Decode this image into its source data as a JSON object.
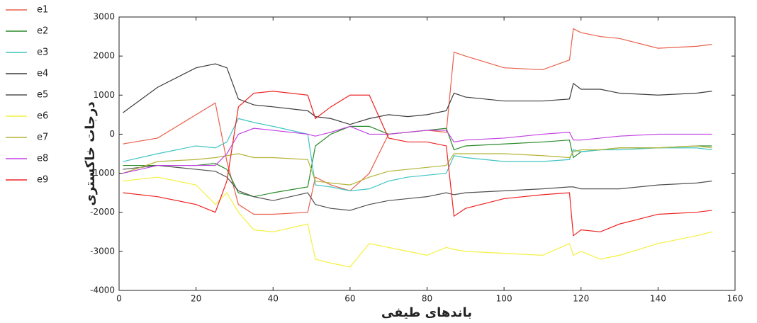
{
  "chart_data": {
    "type": "line",
    "xlabel": "باندهای طیفی",
    "ylabel": "درجات خاکستری",
    "xlim": [
      0,
      160
    ],
    "ylim": [
      -4000,
      3000
    ],
    "xticks": [
      0,
      20,
      40,
      60,
      80,
      100,
      120,
      140,
      160
    ],
    "yticks": [
      -4000,
      -3000,
      -2000,
      -1000,
      0,
      1000,
      2000,
      3000
    ],
    "legend": "left",
    "x": [
      1,
      10,
      20,
      25,
      28,
      31,
      35,
      40,
      49,
      51,
      55,
      60,
      65,
      70,
      75,
      80,
      85,
      87,
      90,
      100,
      110,
      117,
      118,
      120,
      125,
      130,
      140,
      150,
      154
    ],
    "series": [
      {
        "name": "e1",
        "color": "#e8604c",
        "values": [
          -250,
          -100,
          500,
          800,
          -700,
          -1800,
          -2050,
          -2050,
          -2000,
          -1100,
          -1300,
          -1450,
          -1000,
          0,
          50,
          100,
          50,
          2100,
          2000,
          1700,
          1650,
          1900,
          2700,
          2600,
          2500,
          2450,
          2200,
          2250,
          2300
        ]
      },
      {
        "name": "e2",
        "color": "#2a8a2a",
        "values": [
          -800,
          -800,
          -800,
          -750,
          -900,
          -1500,
          -1600,
          -1500,
          -1350,
          -300,
          0,
          200,
          200,
          0,
          50,
          100,
          150,
          -400,
          -300,
          -250,
          -200,
          -150,
          -600,
          -450,
          -400,
          -350,
          -350,
          -300,
          -300
        ]
      },
      {
        "name": "e3",
        "color": "#40c4c4",
        "values": [
          -700,
          -500,
          -300,
          -350,
          -200,
          400,
          300,
          200,
          0,
          -1300,
          -1350,
          -1450,
          -1400,
          -1200,
          -1100,
          -1050,
          -1000,
          -550,
          -600,
          -700,
          -700,
          -650,
          -400,
          -450,
          -400,
          -400,
          -350,
          -350,
          -400
        ]
      },
      {
        "name": "e4",
        "color": "#3c3c3c",
        "values": [
          550,
          1200,
          1700,
          1800,
          1700,
          900,
          750,
          700,
          600,
          450,
          400,
          250,
          400,
          500,
          450,
          500,
          600,
          1050,
          950,
          850,
          850,
          900,
          1300,
          1150,
          1150,
          1050,
          1000,
          1050,
          1100
        ]
      },
      {
        "name": "e5",
        "color": "#505050",
        "values": [
          -900,
          -800,
          -900,
          -950,
          -1100,
          -1450,
          -1600,
          -1700,
          -1500,
          -1800,
          -1900,
          -1950,
          -1800,
          -1700,
          -1650,
          -1600,
          -1500,
          -1550,
          -1500,
          -1450,
          -1400,
          -1350,
          -1350,
          -1400,
          -1400,
          -1400,
          -1300,
          -1250,
          -1200
        ]
      },
      {
        "name": "e6",
        "color": "#f4f040",
        "values": [
          -1200,
          -1100,
          -1300,
          -1800,
          -1500,
          -2000,
          -2450,
          -2500,
          -2300,
          -3200,
          -3300,
          -3400,
          -2800,
          -2900,
          -3000,
          -3100,
          -2900,
          -2950,
          -3000,
          -3050,
          -3100,
          -2800,
          -3100,
          -3000,
          -3200,
          -3100,
          -2800,
          -2600,
          -2500
        ]
      },
      {
        "name": "e7",
        "color": "#b4b438",
        "values": [
          -1000,
          -700,
          -650,
          -600,
          -550,
          -500,
          -600,
          -600,
          -650,
          -1200,
          -1250,
          -1300,
          -1100,
          -950,
          -900,
          -850,
          -800,
          -500,
          -500,
          -500,
          -550,
          -600,
          -450,
          -400,
          -400,
          -350,
          -350,
          -300,
          -350
        ]
      },
      {
        "name": "e8",
        "color": "#c040e0",
        "values": [
          -1000,
          -800,
          -800,
          -800,
          -500,
          0,
          150,
          100,
          0,
          -50,
          50,
          200,
          0,
          0,
          50,
          100,
          100,
          -200,
          -150,
          -100,
          0,
          50,
          -150,
          -150,
          -100,
          -50,
          0,
          0,
          0
        ]
      },
      {
        "name": "e9",
        "color": "#ee2222",
        "values": [
          -1500,
          -1600,
          -1800,
          -2000,
          -1200,
          700,
          1050,
          1100,
          1000,
          400,
          700,
          1000,
          1000,
          -100,
          -200,
          -200,
          -300,
          -2100,
          -1900,
          -1650,
          -1550,
          -1500,
          -2600,
          -2450,
          -2500,
          -2300,
          -2050,
          -2000,
          -1950
        ]
      }
    ]
  }
}
